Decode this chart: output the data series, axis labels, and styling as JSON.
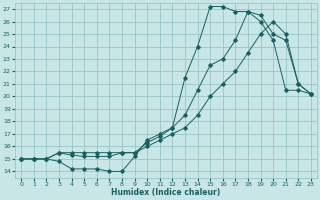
{
  "xlabel": "Humidex (Indice chaleur)",
  "bg_color": "#c8e6e6",
  "grid_color": "#90c0c0",
  "line_color": "#1a6060",
  "xlim": [
    -0.5,
    23.5
  ],
  "ylim": [
    13.5,
    27.5
  ],
  "xticks": [
    0,
    1,
    2,
    3,
    4,
    5,
    6,
    7,
    8,
    9,
    10,
    11,
    12,
    13,
    14,
    15,
    16,
    17,
    18,
    19,
    20,
    21,
    22,
    23
  ],
  "yticks": [
    14,
    15,
    16,
    17,
    18,
    19,
    20,
    21,
    22,
    23,
    24,
    25,
    26,
    27
  ],
  "line1_x": [
    0,
    1,
    2,
    3,
    4,
    5,
    6,
    7,
    8,
    9,
    10,
    11,
    12,
    13,
    14,
    15,
    16,
    17,
    18,
    19,
    20,
    21,
    22,
    23
  ],
  "line1_y": [
    15,
    15,
    15,
    14.8,
    14.2,
    14.2,
    14.2,
    14.0,
    14.0,
    15.2,
    16.5,
    17.0,
    17.5,
    21.5,
    24.0,
    27.2,
    27.2,
    26.8,
    26.8,
    26.0,
    24.5,
    20.5,
    20.5,
    20.2
  ],
  "line2_x": [
    0,
    1,
    2,
    3,
    4,
    5,
    6,
    7,
    8,
    9,
    10,
    11,
    12,
    13,
    14,
    15,
    16,
    17,
    18,
    19,
    20,
    21,
    22,
    23
  ],
  "line2_y": [
    15,
    15,
    15,
    15.5,
    15.3,
    15.2,
    15.2,
    15.2,
    15.5,
    15.5,
    16.3,
    16.8,
    17.5,
    18.5,
    20.5,
    22.5,
    23.0,
    24.5,
    26.8,
    26.5,
    25.0,
    24.5,
    21.0,
    20.2
  ],
  "line3_x": [
    0,
    1,
    2,
    3,
    4,
    5,
    6,
    7,
    8,
    9,
    10,
    11,
    12,
    13,
    14,
    15,
    16,
    17,
    18,
    19,
    20,
    21,
    22,
    23
  ],
  "line3_y": [
    15,
    15,
    15,
    15.5,
    15.5,
    15.5,
    15.5,
    15.5,
    15.5,
    15.5,
    16.0,
    16.5,
    17.0,
    17.5,
    18.5,
    20.0,
    21.0,
    22.0,
    23.5,
    25.0,
    26.0,
    25.0,
    21.0,
    20.2
  ]
}
